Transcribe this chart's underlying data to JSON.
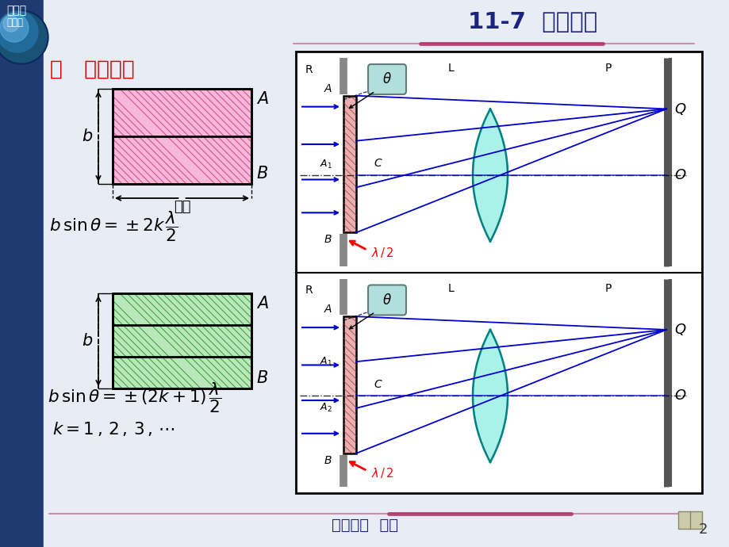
{
  "title": "11-7  单缝衍射",
  "section": "一   半波带法",
  "footer": "第十一章  光学",
  "page": "2",
  "top1": "物理学",
  "top2": "第五版",
  "formula1": "b sin θ = ±2k λ/2",
  "formula2": "b sin θ = ±(2k+1) λ/2",
  "formula3": "k = 1, 2, 3, …",
  "bg_main": "#e8ecf5",
  "bg_left": "#1e3a6e",
  "box_bg": "#ffffff",
  "lens_color": "#40e0d0",
  "lens_edge": "#008080",
  "ray_color": "#0000cc",
  "red_color": "#cc0000",
  "title_color": "#1a237e",
  "footer_color": "#1a237e",
  "slit_fill": "#d4a0a0",
  "pink_fill": "#f0a0c0",
  "green_fill": "#a0d0a0"
}
